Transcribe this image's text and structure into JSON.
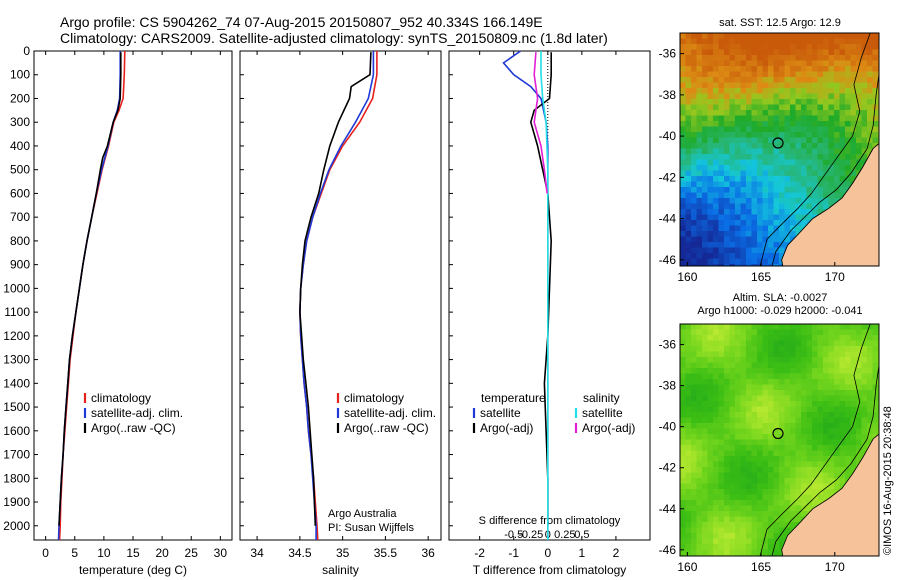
{
  "header": {
    "line1": "Argo profile: CS 5904262_74 07-Aug-2015 20150807_952 40.334S 166.149E",
    "line2": "Climatology: CARS2009. Satellite-adjusted climatology: synTS_20150809.nc (1.8d later)"
  },
  "colors": {
    "climatology": "#e8201c",
    "satellite_adj": "#1f3ad6",
    "argo": "#000000",
    "sat_temperature": "#1f3ad6",
    "sat_salinity": "#22e0e6",
    "argo_salinity": "#e21fd4",
    "land": "#f5c29a",
    "plot_frame": "#000000"
  },
  "chart_data": [
    {
      "type": "line",
      "name": "temperature-profile",
      "xlabel": "temperature (deg C)",
      "ylabel": "",
      "xlim": [
        -2,
        32
      ],
      "ylim": [
        2060,
        0
      ],
      "xticks": [
        0,
        5,
        10,
        15,
        20,
        25,
        30
      ],
      "yticks": [
        0,
        100,
        200,
        300,
        400,
        500,
        600,
        700,
        800,
        900,
        1000,
        1100,
        1200,
        1300,
        1400,
        1500,
        1600,
        1700,
        1800,
        1900,
        2000
      ],
      "legend": {
        "position": "bottom-right",
        "entries": [
          "climatology",
          "satellite-adj. clim.",
          "Argo(..raw -QC)"
        ]
      },
      "series": [
        {
          "name": "climatology",
          "color": "#e8201c",
          "points": [
            [
              13.6,
              0
            ],
            [
              13.5,
              100
            ],
            [
              13.3,
              200
            ],
            [
              12.6,
              250
            ],
            [
              11.7,
              300
            ],
            [
              10.8,
              400
            ],
            [
              9.7,
              500
            ],
            [
              8.8,
              600
            ],
            [
              7.9,
              700
            ],
            [
              7.1,
              800
            ],
            [
              6.4,
              900
            ],
            [
              5.8,
              1000
            ],
            [
              5.2,
              1100
            ],
            [
              4.7,
              1200
            ],
            [
              4.2,
              1300
            ],
            [
              3.9,
              1400
            ],
            [
              3.6,
              1500
            ],
            [
              3.3,
              1600
            ],
            [
              3.0,
              1700
            ],
            [
              2.8,
              1800
            ],
            [
              2.6,
              1900
            ],
            [
              2.5,
              2000
            ],
            [
              2.4,
              2060
            ]
          ]
        },
        {
          "name": "satellite-adj. clim.",
          "color": "#1f3ad6",
          "points": [
            [
              12.8,
              0
            ],
            [
              12.8,
              100
            ],
            [
              12.7,
              200
            ],
            [
              12.3,
              250
            ],
            [
              11.6,
              300
            ],
            [
              10.7,
              400
            ],
            [
              9.6,
              500
            ],
            [
              8.7,
              600
            ],
            [
              7.9,
              700
            ],
            [
              7.1,
              800
            ],
            [
              6.4,
              900
            ],
            [
              5.8,
              1000
            ],
            [
              5.2,
              1100
            ],
            [
              4.6,
              1200
            ],
            [
              4.1,
              1300
            ],
            [
              3.8,
              1400
            ],
            [
              3.5,
              1500
            ],
            [
              3.2,
              1600
            ],
            [
              3.0,
              1700
            ],
            [
              2.7,
              1800
            ],
            [
              2.5,
              1900
            ],
            [
              2.3,
              2000
            ],
            [
              2.2,
              2060
            ]
          ]
        },
        {
          "name": "Argo(..raw -QC)",
          "color": "#000000",
          "points": [
            [
              12.9,
              5
            ],
            [
              12.9,
              100
            ],
            [
              12.8,
              200
            ],
            [
              12.4,
              250
            ],
            [
              11.6,
              300
            ],
            [
              10.6,
              400
            ],
            [
              9.8,
              450
            ],
            [
              9.4,
              500
            ],
            [
              8.7,
              600
            ],
            [
              7.9,
              700
            ],
            [
              7.1,
              800
            ],
            [
              6.4,
              900
            ],
            [
              5.8,
              1000
            ],
            [
              5.2,
              1100
            ],
            [
              4.6,
              1200
            ],
            [
              4.1,
              1300
            ],
            [
              3.8,
              1400
            ],
            [
              3.5,
              1500
            ],
            [
              3.2,
              1600
            ],
            [
              3.0,
              1700
            ],
            [
              2.7,
              1800
            ],
            [
              2.5,
              1900
            ],
            [
              2.3,
              2000
            ]
          ]
        }
      ]
    },
    {
      "type": "line",
      "name": "salinity-profile",
      "xlabel": "salinity",
      "ylabel": "",
      "xlim": [
        33.8,
        36.15
      ],
      "ylim": [
        2060,
        0
      ],
      "xticks": [
        34,
        34.5,
        35,
        35.5,
        36
      ],
      "xtick_labels": [
        "34",
        "34.5",
        "35",
        "35.5",
        "36"
      ],
      "legend": {
        "position": "bottom-right",
        "entries": [
          "climatology",
          "satellite-adj. clim.",
          "Argo(..raw -QC)"
        ]
      },
      "annotation": [
        "Argo Australia",
        "PI: Susan Wijffels"
      ],
      "series": [
        {
          "name": "climatology",
          "color": "#e8201c",
          "points": [
            [
              35.4,
              0
            ],
            [
              35.4,
              100
            ],
            [
              35.35,
              200
            ],
            [
              35.2,
              300
            ],
            [
              35.0,
              400
            ],
            [
              34.85,
              500
            ],
            [
              34.75,
              600
            ],
            [
              34.65,
              700
            ],
            [
              34.58,
              800
            ],
            [
              34.54,
              900
            ],
            [
              34.51,
              1000
            ],
            [
              34.5,
              1100
            ],
            [
              34.51,
              1200
            ],
            [
              34.53,
              1300
            ],
            [
              34.55,
              1400
            ],
            [
              34.58,
              1500
            ],
            [
              34.6,
              1600
            ],
            [
              34.63,
              1700
            ],
            [
              34.66,
              1800
            ],
            [
              34.68,
              1900
            ],
            [
              34.7,
              2000
            ],
            [
              34.71,
              2060
            ]
          ]
        },
        {
          "name": "satellite-adj. clim.",
          "color": "#1f3ad6",
          "points": [
            [
              35.36,
              0
            ],
            [
              35.36,
              100
            ],
            [
              35.3,
              200
            ],
            [
              35.15,
              300
            ],
            [
              34.98,
              400
            ],
            [
              34.84,
              500
            ],
            [
              34.74,
              600
            ],
            [
              34.65,
              700
            ],
            [
              34.58,
              800
            ],
            [
              34.54,
              900
            ],
            [
              34.51,
              1000
            ],
            [
              34.5,
              1100
            ],
            [
              34.51,
              1200
            ],
            [
              34.53,
              1300
            ],
            [
              34.55,
              1400
            ],
            [
              34.58,
              1500
            ],
            [
              34.6,
              1600
            ],
            [
              34.63,
              1700
            ],
            [
              34.65,
              1800
            ],
            [
              34.67,
              1900
            ],
            [
              34.69,
              2000
            ],
            [
              34.69,
              2060
            ]
          ]
        },
        {
          "name": "Argo(..raw -QC)",
          "color": "#000000",
          "points": [
            [
              35.33,
              5
            ],
            [
              35.32,
              100
            ],
            [
              35.1,
              150
            ],
            [
              35.08,
              200
            ],
            [
              34.95,
              300
            ],
            [
              34.85,
              400
            ],
            [
              34.78,
              500
            ],
            [
              34.72,
              600
            ],
            [
              34.63,
              700
            ],
            [
              34.56,
              800
            ],
            [
              34.53,
              900
            ],
            [
              34.51,
              1000
            ],
            [
              34.5,
              1100
            ],
            [
              34.52,
              1200
            ],
            [
              34.54,
              1300
            ],
            [
              34.57,
              1400
            ],
            [
              34.6,
              1500
            ],
            [
              34.62,
              1600
            ],
            [
              34.64,
              1700
            ],
            [
              34.66,
              1800
            ],
            [
              34.67,
              1900
            ],
            [
              34.68,
              2000
            ]
          ]
        }
      ]
    },
    {
      "type": "line",
      "name": "difference-profile",
      "xlabel": "T difference from climatology",
      "top_axis_label": "S difference from climatology",
      "xlim": [
        -2.9,
        3.0
      ],
      "ylim": [
        2060,
        0
      ],
      "xticks": [
        -2,
        -1,
        0,
        1,
        2
      ],
      "xtick_labels": [
        "-2",
        "-1",
        "0",
        "1",
        "2"
      ],
      "s_ticks": [
        -0.5,
        -0.25,
        0,
        0.25,
        0.5
      ],
      "s_tick_labels": [
        "-0.5",
        "-0.25",
        "0",
        "0.25",
        "0.5"
      ],
      "legend": {
        "position": "bottom",
        "temperature_header": "temperature",
        "salinity_header": "salinity",
        "entries": [
          "satellite",
          "Argo(-adj)",
          "satellite",
          "Argo(-adj)"
        ]
      },
      "series": [
        {
          "name": "temperature satellite",
          "color": "#1f3ad6",
          "points": [
            [
              -0.8,
              0
            ],
            [
              -1.3,
              50
            ],
            [
              -1.0,
              100
            ],
            [
              -0.5,
              150
            ],
            [
              -0.2,
              200
            ],
            [
              -0.05,
              300
            ],
            [
              0,
              400
            ],
            [
              0,
              2060
            ]
          ]
        },
        {
          "name": "temperature Argo(-adj)",
          "color": "#000000",
          "points": [
            [
              0.1,
              5
            ],
            [
              0.1,
              100
            ],
            [
              0.05,
              200
            ],
            [
              -0.4,
              250
            ],
            [
              -0.5,
              300
            ],
            [
              -0.3,
              400
            ],
            [
              -0.15,
              500
            ],
            [
              0,
              600
            ],
            [
              0.1,
              800
            ],
            [
              0.05,
              1000
            ],
            [
              0,
              1200
            ],
            [
              -0.1,
              1400
            ],
            [
              -0.05,
              1600
            ],
            [
              0,
              1800
            ],
            [
              0,
              2000
            ]
          ]
        },
        {
          "name": "salinity satellite",
          "color": "#22e0e6",
          "points": [
            [
              -0.2,
              0
            ],
            [
              -0.2,
              100
            ],
            [
              -0.15,
              200
            ],
            [
              -0.05,
              300
            ],
            [
              0,
              500
            ],
            [
              0,
              2060
            ]
          ]
        },
        {
          "name": "salinity Argo(-adj)",
          "color": "#e21fd4",
          "points": [
            [
              -0.35,
              5
            ],
            [
              -0.4,
              100
            ],
            [
              -0.3,
              200
            ],
            [
              -0.4,
              300
            ],
            [
              -0.2,
              400
            ],
            [
              -0.1,
              500
            ],
            [
              -0.02,
              600
            ]
          ]
        }
      ]
    },
    {
      "type": "heatmap",
      "name": "sst-map",
      "title": "sat. SST: 12.5 Argo: 12.9",
      "xlim": [
        159.5,
        173
      ],
      "ylim": [
        -46.3,
        -35
      ],
      "xticks": [
        160,
        165,
        170
      ],
      "yticks": [
        -36,
        -38,
        -40,
        -42,
        -44,
        -46
      ],
      "ytick_labels": [
        "-36",
        "-38",
        "-40",
        "-42",
        "-44",
        "-46"
      ],
      "marker": {
        "lon": 166.149,
        "lat": -40.334
      }
    },
    {
      "type": "heatmap",
      "name": "sla-map",
      "title_line1": "Altim. SLA: -0.0027",
      "title_line2": "Argo h1000: -0.029 h2000: -0.041",
      "xlim": [
        159.5,
        173
      ],
      "ylim": [
        -46.3,
        -35
      ],
      "xticks": [
        160,
        165,
        170
      ],
      "yticks": [
        -36,
        -38,
        -40,
        -42,
        -44,
        -46
      ],
      "ytick_labels": [
        "-36",
        "-38",
        "-40",
        "-42",
        "-44",
        "-46"
      ],
      "marker": {
        "lon": 166.149,
        "lat": -40.334
      }
    }
  ],
  "side_label": "©IMOS 16-Aug-2015 20:38:48"
}
